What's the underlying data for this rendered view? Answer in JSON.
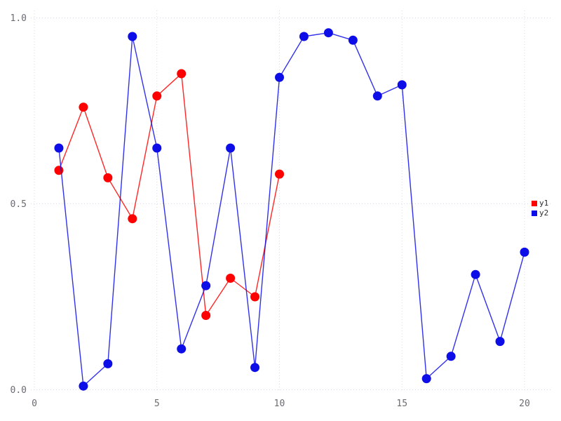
{
  "chart_data": {
    "type": "line",
    "title": "",
    "xlabel": "",
    "ylabel": "",
    "xlim": [
      0,
      20
    ],
    "ylim": [
      0.0,
      1.0
    ],
    "grid": true,
    "grid_style": "dotted",
    "grid_color": "#dadae4",
    "background_color": "#ffffff",
    "tick_label_color": "#6b6b73",
    "x_ticks": [
      0,
      5,
      10,
      15,
      20
    ],
    "x_tick_labels": [
      "0",
      "5",
      "10",
      "15",
      "20"
    ],
    "y_ticks": [
      0.0,
      0.5,
      1.0
    ],
    "y_tick_labels": [
      "0.0",
      "0.5",
      "1.0"
    ],
    "legend_position": "right-middle",
    "marker": "circle",
    "series": [
      {
        "name": "y1",
        "color": "#ff0000",
        "x": [
          1,
          2,
          3,
          4,
          5,
          6,
          7,
          8,
          9,
          10
        ],
        "values": [
          0.59,
          0.76,
          0.57,
          0.46,
          0.79,
          0.85,
          0.2,
          0.3,
          0.25,
          0.58
        ]
      },
      {
        "name": "y2",
        "color": "#0d0de8",
        "x": [
          1,
          2,
          3,
          4,
          5,
          6,
          7,
          8,
          9,
          10,
          11,
          12,
          13,
          14,
          15,
          16,
          17,
          18,
          19,
          20
        ],
        "values": [
          0.65,
          0.01,
          0.07,
          0.95,
          0.65,
          0.11,
          0.28,
          0.65,
          0.06,
          0.84,
          0.95,
          0.96,
          0.94,
          0.79,
          0.82,
          0.03,
          0.09,
          0.31,
          0.13,
          0.37
        ]
      }
    ]
  },
  "legend": {
    "items": [
      {
        "label": "y1",
        "color": "#ff0000"
      },
      {
        "label": "y2",
        "color": "#0d0de8"
      }
    ]
  }
}
